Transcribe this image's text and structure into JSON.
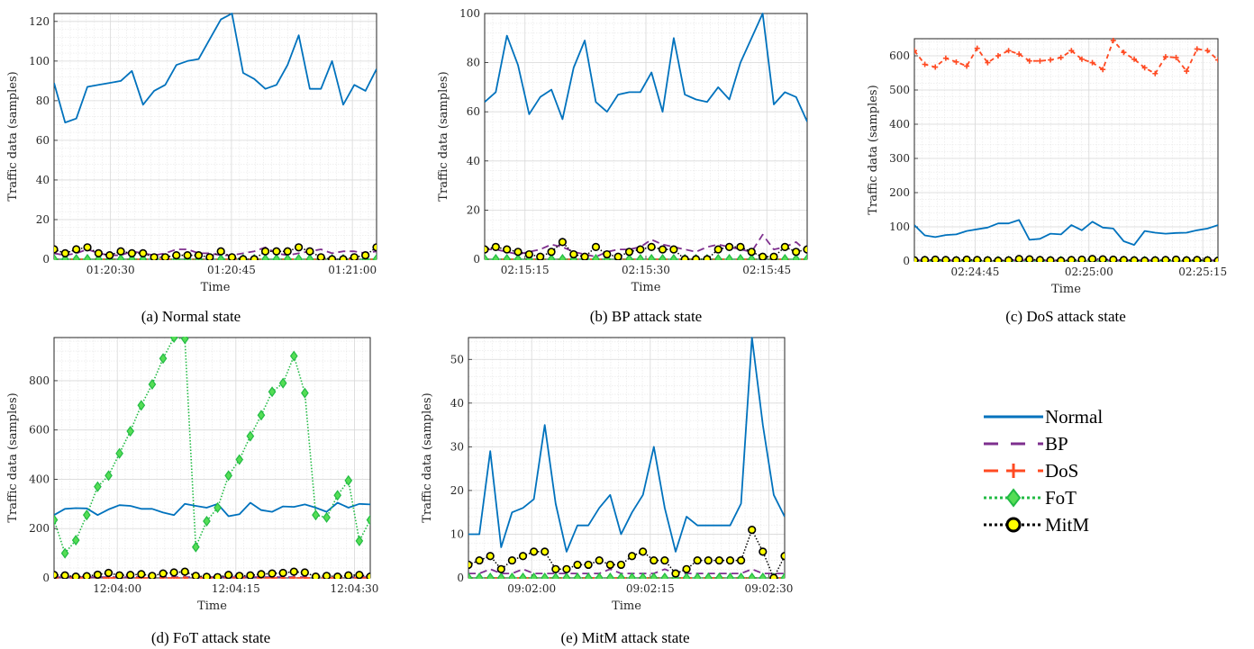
{
  "colors": {
    "Normal": "#0072bd",
    "BP": "#7e2f8e",
    "DoS": "#ff4a22",
    "FoT": "#22bb44",
    "FoT_fill": "#55dd55",
    "MitM": "#000000",
    "MitM_fill": "#ffff00"
  },
  "legend": {
    "entries": [
      "Normal",
      "BP",
      "DoS",
      "FoT",
      "MitM"
    ]
  },
  "chart_data": [
    {
      "type": "line",
      "caption": "(a) Normal state",
      "xlabel": "Time",
      "ylabel": "Traffic data (samples)",
      "ylim": [
        0,
        124
      ],
      "yticks": [
        0,
        20,
        40,
        60,
        80,
        100,
        120
      ],
      "xticks": [
        "01:20:30",
        "01:20:45",
        "01:21:00"
      ],
      "xtick_idx": [
        7,
        22,
        37
      ],
      "series": [
        {
          "name": "Normal",
          "values": [
            89,
            69,
            71,
            87,
            88,
            89,
            90,
            95,
            78,
            85,
            88,
            98,
            100,
            101,
            111,
            121,
            124,
            94,
            91,
            86,
            88,
            98,
            113,
            86,
            86,
            100,
            78,
            88,
            85,
            96
          ]
        },
        {
          "name": "BP",
          "values": [
            3,
            2,
            3,
            5,
            3,
            2,
            2,
            4,
            3,
            2,
            3,
            5,
            5,
            3,
            3,
            2,
            2,
            3,
            4,
            6,
            3,
            2,
            3,
            4,
            5,
            3,
            4,
            4,
            3,
            4
          ]
        },
        {
          "name": "DoS",
          "values": [
            0,
            0,
            0,
            0,
            0,
            0,
            0,
            0,
            0,
            0,
            0,
            0,
            0,
            0,
            0,
            0,
            0,
            0,
            0,
            0,
            0,
            0,
            0,
            0,
            0,
            0,
            0,
            0,
            0,
            0
          ]
        },
        {
          "name": "FoT",
          "values": [
            0,
            0,
            0,
            0,
            0,
            0,
            0,
            0,
            0,
            0,
            0,
            0,
            0,
            0,
            0,
            0,
            0,
            0,
            0,
            0,
            0,
            0,
            0,
            0,
            0,
            0,
            0,
            0,
            0,
            0
          ]
        },
        {
          "name": "MitM",
          "values": [
            5,
            3,
            5,
            6,
            3,
            2,
            4,
            3,
            3,
            1,
            1,
            2,
            2,
            2,
            1,
            4,
            1,
            0,
            0,
            4,
            4,
            4,
            6,
            4,
            1,
            0,
            0,
            1,
            2,
            6
          ]
        }
      ]
    },
    {
      "type": "line",
      "caption": "(b) BP attack state",
      "xlabel": "Time",
      "ylabel": "Traffic data (samples)",
      "ylim": [
        0,
        100
      ],
      "yticks": [
        0,
        20,
        40,
        60,
        80,
        100
      ],
      "xticks": [
        "02:15:15",
        "02:15:30",
        "02:15:45"
      ],
      "xtick_idx": [
        5,
        20,
        35
      ],
      "series": [
        {
          "name": "Normal",
          "values": [
            64,
            68,
            91,
            79,
            59,
            66,
            69,
            57,
            78,
            89,
            64,
            60,
            67,
            68,
            68,
            76,
            60,
            90,
            67,
            65,
            64,
            70,
            65,
            80,
            90,
            100,
            63,
            68,
            66,
            56
          ]
        },
        {
          "name": "BP",
          "values": [
            4,
            4,
            3,
            2,
            3,
            4,
            6,
            5,
            3,
            2,
            1,
            3,
            4,
            4,
            5,
            8,
            6,
            5,
            4,
            3,
            5,
            6,
            5,
            4,
            3,
            10,
            4,
            5,
            7,
            3
          ]
        },
        {
          "name": "DoS",
          "values": [
            0,
            0,
            0,
            0,
            0,
            0,
            0,
            0,
            0,
            0,
            0,
            0,
            0,
            0,
            0,
            0,
            0,
            0,
            0,
            0,
            0,
            0,
            0,
            0,
            0,
            0,
            0,
            0,
            0,
            0
          ]
        },
        {
          "name": "FoT",
          "values": [
            0,
            0,
            0,
            0,
            0,
            0,
            0,
            0,
            0,
            0,
            0,
            0,
            0,
            0,
            0,
            0,
            0,
            0,
            0,
            0,
            0,
            0,
            0,
            0,
            0,
            0,
            0,
            0,
            0,
            0
          ]
        },
        {
          "name": "MitM",
          "values": [
            4,
            5,
            4,
            3,
            2,
            1,
            3,
            7,
            2,
            1,
            5,
            2,
            1,
            3,
            4,
            5,
            4,
            4,
            0,
            0,
            0,
            4,
            5,
            5,
            3,
            1,
            1,
            5,
            3,
            4
          ]
        }
      ]
    },
    {
      "type": "line",
      "caption": "(c) DoS attack state",
      "xlabel": "Time",
      "ylabel": "Traffic data (samples)",
      "ylim": [
        0,
        650
      ],
      "yticks": [
        0,
        100,
        200,
        300,
        400,
        500,
        600
      ],
      "xticks": [
        "02:24:45",
        "02:25:00",
        "02:25:15"
      ],
      "xtick_idx": [
        8,
        23,
        38
      ],
      "series": [
        {
          "name": "Normal",
          "values": [
            105,
            75,
            70,
            76,
            78,
            88,
            93,
            98,
            110,
            110,
            120,
            62,
            65,
            80,
            78,
            105,
            90,
            115,
            98,
            95,
            58,
            47,
            88,
            83,
            80,
            82,
            83,
            90,
            95,
            105
          ]
        },
        {
          "name": "BP",
          "values": [
            2,
            2,
            2,
            2,
            2,
            2,
            2,
            2,
            2,
            2,
            2,
            2,
            2,
            2,
            2,
            2,
            2,
            2,
            2,
            2,
            2,
            2,
            2,
            2,
            2,
            2,
            2,
            2,
            2,
            2
          ]
        },
        {
          "name": "DoS",
          "values": [
            615,
            575,
            567,
            593,
            582,
            570,
            622,
            580,
            600,
            615,
            605,
            585,
            585,
            588,
            595,
            615,
            590,
            580,
            560,
            645,
            610,
            590,
            565,
            548,
            597,
            595,
            555,
            620,
            615,
            588
          ]
        },
        {
          "name": "FoT",
          "values": [
            0,
            0,
            0,
            0,
            0,
            0,
            0,
            0,
            0,
            0,
            0,
            0,
            0,
            0,
            0,
            0,
            0,
            0,
            0,
            0,
            0,
            0,
            0,
            0,
            0,
            0,
            0,
            0,
            0,
            0
          ]
        },
        {
          "name": "MitM",
          "values": [
            2,
            3,
            4,
            3,
            2,
            4,
            3,
            2,
            1,
            2,
            6,
            5,
            3,
            2,
            1,
            3,
            4,
            6,
            5,
            4,
            3,
            2,
            1,
            2,
            3,
            4,
            2,
            3,
            2,
            1
          ]
        }
      ]
    },
    {
      "type": "line",
      "caption": "(d) FoT attack state",
      "xlabel": "Time",
      "ylabel": "Traffic data (samples)",
      "ylim": [
        0,
        975
      ],
      "yticks": [
        0,
        200,
        400,
        600,
        800
      ],
      "xticks": [
        "12:04:00",
        "12:04:15",
        "12:04:30"
      ],
      "xtick_idx": [
        8,
        23,
        38
      ],
      "series": [
        {
          "name": "Normal",
          "values": [
            255,
            280,
            283,
            282,
            255,
            278,
            295,
            292,
            280,
            280,
            265,
            255,
            300,
            292,
            285,
            300,
            250,
            258,
            305,
            275,
            268,
            290,
            288,
            298,
            285,
            268,
            305,
            285,
            300,
            298
          ]
        },
        {
          "name": "BP",
          "values": [
            3,
            3,
            3,
            3,
            3,
            3,
            3,
            3,
            3,
            3,
            3,
            3,
            3,
            3,
            3,
            3,
            3,
            3,
            3,
            3,
            3,
            3,
            3,
            3,
            3,
            3,
            3,
            3,
            3,
            3
          ]
        },
        {
          "name": "DoS",
          "values": [
            0,
            0,
            0,
            0,
            0,
            0,
            0,
            0,
            0,
            0,
            0,
            0,
            0,
            0,
            0,
            0,
            0,
            0,
            0,
            0,
            0,
            0,
            0,
            0,
            0,
            0,
            0,
            0,
            0,
            0
          ]
        },
        {
          "name": "FoT",
          "values": [
            235,
            100,
            153,
            255,
            370,
            415,
            505,
            595,
            700,
            785,
            890,
            975,
            970,
            125,
            230,
            285,
            415,
            480,
            575,
            660,
            755,
            790,
            900,
            750,
            255,
            245,
            335,
            395,
            150,
            235
          ]
        },
        {
          "name": "MitM",
          "values": [
            12,
            10,
            5,
            7,
            13,
            20,
            10,
            12,
            15,
            8,
            18,
            22,
            25,
            8,
            4,
            3,
            12,
            8,
            10,
            15,
            18,
            20,
            25,
            22,
            5,
            8,
            5,
            10,
            12,
            5
          ]
        }
      ]
    },
    {
      "type": "line",
      "caption": "(e) MitM attack state",
      "xlabel": "Time",
      "ylabel": "Traffic data (samples)",
      "ylim": [
        0,
        55
      ],
      "yticks": [
        0,
        10,
        20,
        30,
        40,
        50
      ],
      "xticks": [
        "09:02:00",
        "09:02:15",
        "09:02:30"
      ],
      "xtick_idx": [
        8,
        23,
        38
      ],
      "series": [
        {
          "name": "Normal",
          "values": [
            10,
            10,
            29,
            7,
            15,
            16,
            18,
            35,
            17,
            6,
            12,
            12,
            16,
            19,
            10,
            15,
            19,
            30,
            16,
            6,
            14,
            12,
            12,
            12,
            12,
            17,
            55,
            35,
            19,
            14
          ]
        },
        {
          "name": "BP",
          "values": [
            1,
            1,
            2,
            1,
            1,
            2,
            1,
            1,
            1,
            1,
            1,
            1,
            1,
            2,
            1,
            1,
            1,
            1,
            2,
            1,
            1,
            1,
            1,
            1,
            1,
            1,
            2,
            1,
            1,
            1
          ]
        },
        {
          "name": "DoS",
          "values": [
            0,
            0,
            0,
            0,
            0,
            0,
            0,
            0,
            0,
            0,
            0,
            0,
            0,
            0,
            0,
            0,
            0,
            0,
            0,
            0,
            0,
            0,
            0,
            0,
            0,
            0,
            0,
            0,
            0,
            0
          ]
        },
        {
          "name": "FoT",
          "values": [
            0,
            0,
            0,
            0,
            0,
            0,
            0,
            0,
            0,
            0,
            0,
            0,
            0,
            0,
            0,
            0,
            0,
            0,
            0,
            0,
            0,
            0,
            0,
            0,
            0,
            0,
            0,
            0,
            0,
            0
          ]
        },
        {
          "name": "MitM",
          "values": [
            3,
            4,
            5,
            2,
            4,
            5,
            6,
            6,
            2,
            2,
            3,
            3,
            4,
            3,
            3,
            5,
            6,
            4,
            4,
            1,
            2,
            4,
            4,
            4,
            4,
            4,
            11,
            6,
            0,
            5
          ]
        }
      ]
    }
  ]
}
